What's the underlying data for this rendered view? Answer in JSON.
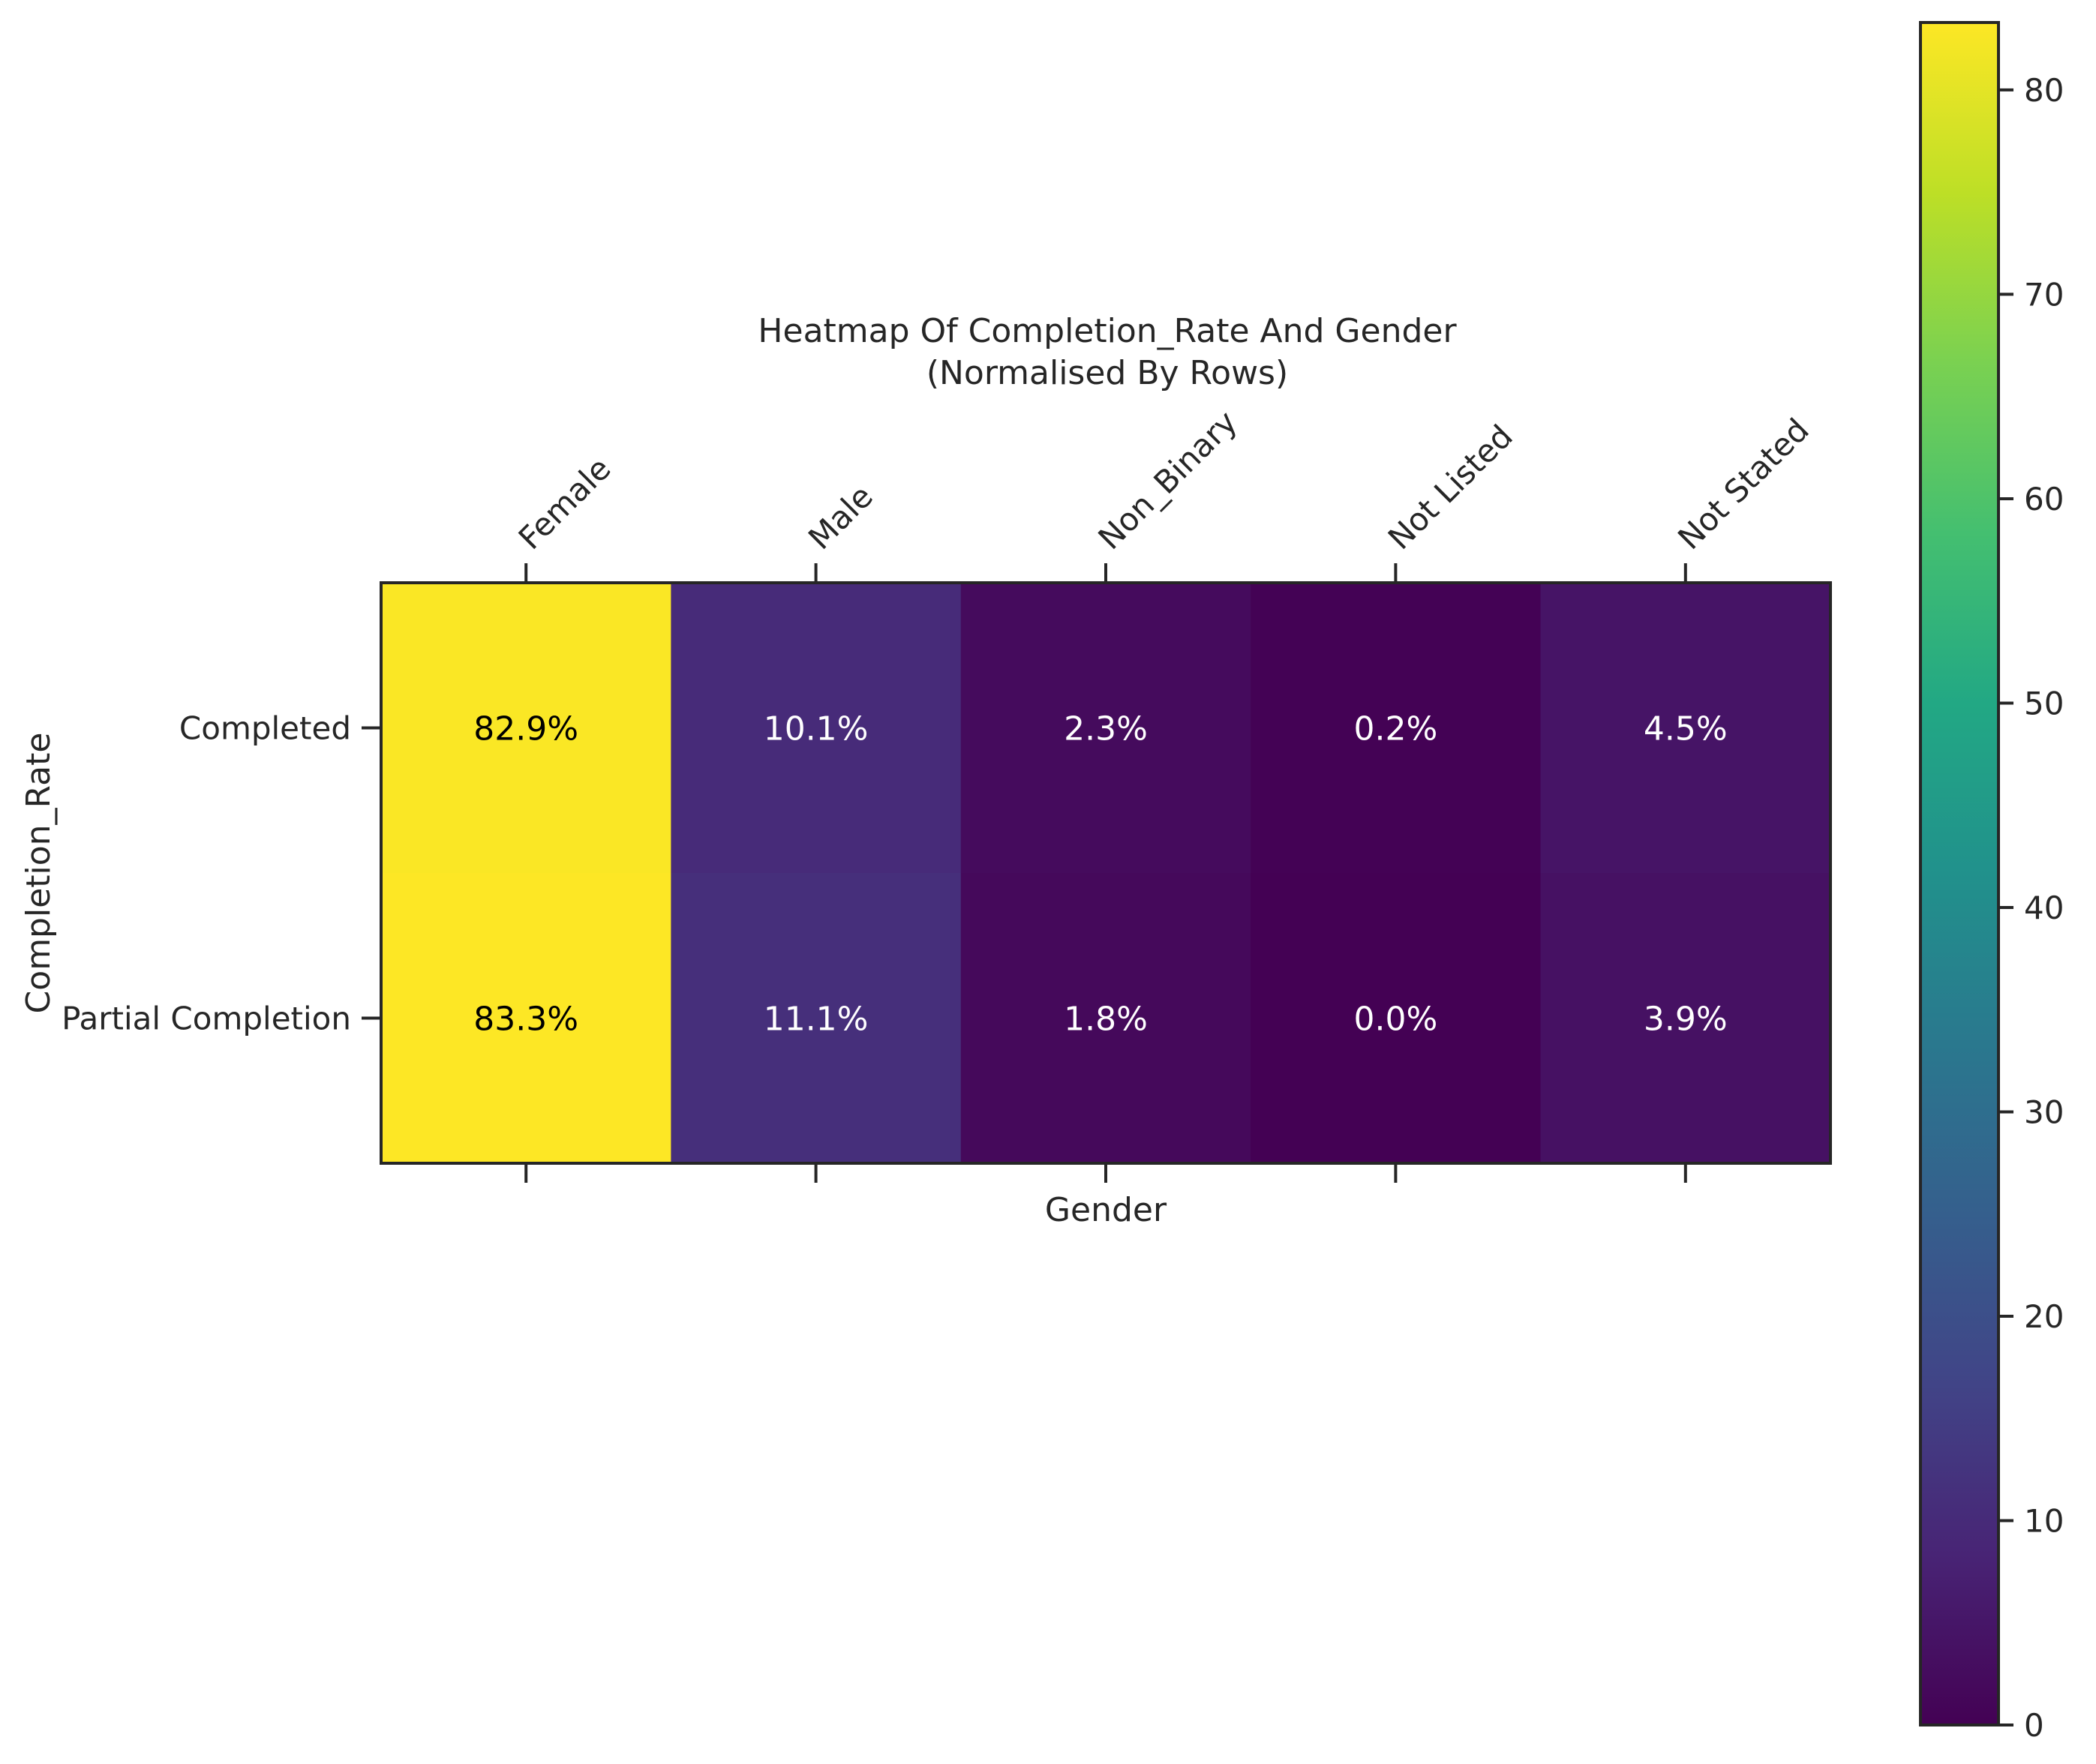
{
  "chart_data": {
    "type": "heatmap",
    "title": "Heatmap Of Completion_Rate And Gender",
    "subtitle": "(Normalised By Rows)",
    "xlabel": "Gender",
    "ylabel": "Completion_Rate",
    "x_categories": [
      "Female",
      "Male",
      "Non_Binary",
      "Not Listed",
      "Not Stated"
    ],
    "y_categories": [
      "Completed",
      "Partial Completion"
    ],
    "values": [
      [
        82.9,
        10.1,
        2.3,
        0.2,
        4.5
      ],
      [
        83.3,
        11.1,
        1.8,
        0.0,
        3.9
      ]
    ],
    "cell_labels": [
      [
        "82.9%",
        "10.1%",
        "2.3%",
        "0.2%",
        "4.5%"
      ],
      [
        "83.3%",
        "11.1%",
        "1.8%",
        "0.0%",
        "3.9%"
      ]
    ],
    "colormap": "viridis",
    "colorbar": {
      "range": [
        0,
        83.3
      ],
      "ticks": [
        "0",
        "10",
        "20",
        "30",
        "40",
        "50",
        "60",
        "70",
        "80"
      ]
    }
  }
}
